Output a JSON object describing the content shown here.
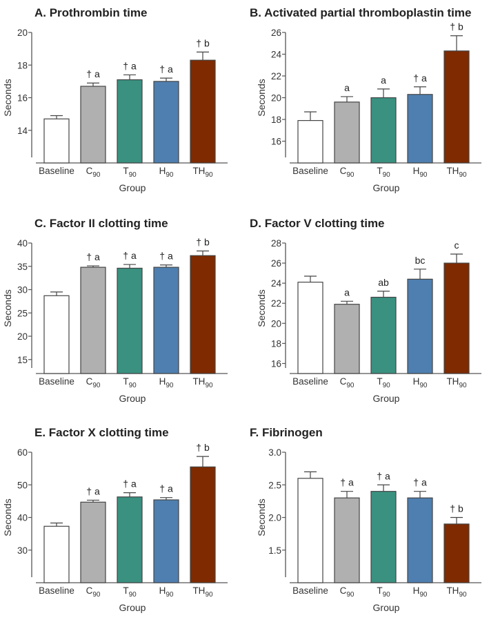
{
  "chart_data": [
    {
      "type": "bar",
      "title": "A. Prothrombin time",
      "xlabel": "Group",
      "ylabel": "Seconds",
      "ylim": [
        12,
        20
      ],
      "yticks": [
        "14",
        "16",
        "18",
        "20"
      ],
      "ytick_values": [
        14,
        16,
        18,
        20
      ],
      "categories": [
        {
          "main": "Baseline",
          "sub": ""
        },
        {
          "main": "C",
          "sub": "90"
        },
        {
          "main": "T",
          "sub": "90"
        },
        {
          "main": "H",
          "sub": "90"
        },
        {
          "main": "TH",
          "sub": "90"
        }
      ],
      "values": [
        14.7,
        16.7,
        17.1,
        17.0,
        18.3
      ],
      "errors": [
        0.2,
        0.2,
        0.3,
        0.2,
        0.5
      ],
      "annotations": [
        "",
        "† a",
        "† a",
        "† a",
        "† b"
      ]
    },
    {
      "type": "bar",
      "title": "B. Activated partial thromboplastin time",
      "xlabel": "Group",
      "ylabel": "Seconds",
      "ylim": [
        14,
        26
      ],
      "yticks": [
        "16",
        "18",
        "20",
        "22",
        "24",
        "26"
      ],
      "ytick_values": [
        16,
        18,
        20,
        22,
        24,
        26
      ],
      "categories": [
        {
          "main": "Baseline",
          "sub": ""
        },
        {
          "main": "C",
          "sub": "90"
        },
        {
          "main": "T",
          "sub": "90"
        },
        {
          "main": "H",
          "sub": "90"
        },
        {
          "main": "TH",
          "sub": "90"
        }
      ],
      "values": [
        17.9,
        19.6,
        20.0,
        20.3,
        24.3
      ],
      "errors": [
        0.8,
        0.5,
        0.8,
        0.7,
        1.4
      ],
      "annotations": [
        "",
        "a",
        "a",
        "† a",
        "† b"
      ]
    },
    {
      "type": "bar",
      "title": "C. Factor II clotting time",
      "xlabel": "Group",
      "ylabel": "Seconds",
      "ylim": [
        12,
        40
      ],
      "yticks": [
        "15",
        "20",
        "25",
        "30",
        "35",
        "40"
      ],
      "ytick_values": [
        15,
        20,
        25,
        30,
        35,
        40
      ],
      "categories": [
        {
          "main": "Baseline",
          "sub": ""
        },
        {
          "main": "C",
          "sub": "90"
        },
        {
          "main": "T",
          "sub": "90"
        },
        {
          "main": "H",
          "sub": "90"
        },
        {
          "main": "TH",
          "sub": "90"
        }
      ],
      "values": [
        28.7,
        34.8,
        34.6,
        34.8,
        37.3
      ],
      "errors": [
        0.8,
        0.3,
        0.8,
        0.5,
        1.0
      ],
      "annotations": [
        "",
        "† a",
        "† a",
        "† a",
        "† b"
      ]
    },
    {
      "type": "bar",
      "title": "D. Factor V clotting time",
      "xlabel": "Group",
      "ylabel": "Seconds",
      "ylim": [
        15,
        28
      ],
      "yticks": [
        "16",
        "18",
        "20",
        "22",
        "24",
        "26",
        "28"
      ],
      "ytick_values": [
        16,
        18,
        20,
        22,
        24,
        26,
        28
      ],
      "categories": [
        {
          "main": "Baseline",
          "sub": ""
        },
        {
          "main": "C",
          "sub": "90"
        },
        {
          "main": "T",
          "sub": "90"
        },
        {
          "main": "H",
          "sub": "90"
        },
        {
          "main": "TH",
          "sub": "90"
        }
      ],
      "values": [
        24.1,
        21.9,
        22.6,
        24.4,
        26.0
      ],
      "errors": [
        0.6,
        0.3,
        0.6,
        1.0,
        0.9
      ],
      "annotations": [
        "",
        "a",
        "ab",
        "bc",
        "c"
      ]
    },
    {
      "type": "bar",
      "title": "E. Factor X clotting time",
      "xlabel": "Group",
      "ylabel": "Seconds",
      "ylim": [
        20,
        60
      ],
      "yticks": [
        "30",
        "40",
        "50",
        "60"
      ],
      "ytick_values": [
        30,
        40,
        50,
        60
      ],
      "categories": [
        {
          "main": "Baseline",
          "sub": ""
        },
        {
          "main": "C",
          "sub": "90"
        },
        {
          "main": "T",
          "sub": "90"
        },
        {
          "main": "H",
          "sub": "90"
        },
        {
          "main": "TH",
          "sub": "90"
        }
      ],
      "values": [
        37.3,
        44.7,
        46.3,
        45.4,
        55.5
      ],
      "errors": [
        1.0,
        0.6,
        1.3,
        0.7,
        3.2
      ],
      "annotations": [
        "",
        "† a",
        "† a",
        "† a",
        "† b"
      ]
    },
    {
      "type": "bar",
      "title": "F. Fibrinogen",
      "xlabel": "Group",
      "ylabel": "Seconds",
      "ylim": [
        1.0,
        3.0
      ],
      "yticks": [
        "1.5",
        "2.0",
        "2.5",
        "3.0"
      ],
      "ytick_values": [
        1.5,
        2.0,
        2.5,
        3.0
      ],
      "categories": [
        {
          "main": "Baseline",
          "sub": ""
        },
        {
          "main": "C",
          "sub": "90"
        },
        {
          "main": "T",
          "sub": "90"
        },
        {
          "main": "H",
          "sub": "90"
        },
        {
          "main": "TH",
          "sub": "90"
        }
      ],
      "values": [
        2.6,
        2.3,
        2.4,
        2.3,
        1.9
      ],
      "errors": [
        0.1,
        0.1,
        0.1,
        0.1,
        0.1
      ],
      "annotations": [
        "",
        "† a",
        "† a",
        "† a",
        "† b"
      ]
    }
  ],
  "colors": {
    "bars": [
      "#ffffff",
      "#b0b0b0",
      "#3a9180",
      "#4f7fb0",
      "#7f2a00"
    ],
    "outline": "#444444",
    "axis": "#555555"
  }
}
